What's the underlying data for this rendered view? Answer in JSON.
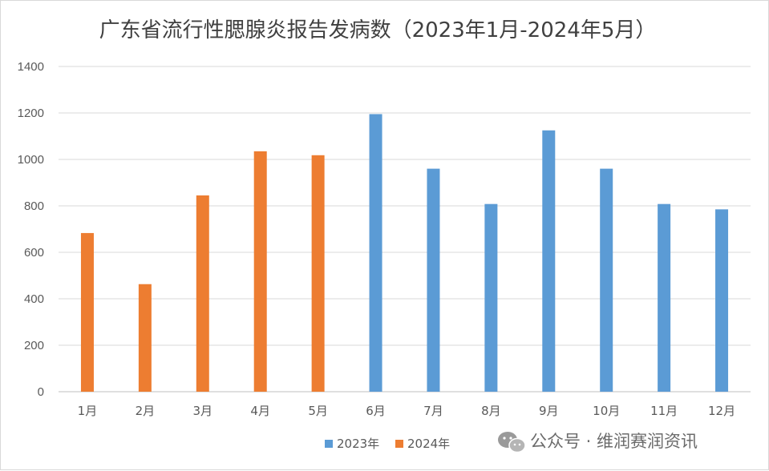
{
  "chart_data": {
    "type": "bar",
    "title": "广东省流行性腮腺炎报告发病数（2023年1月-2024年5月）",
    "xlabel": "",
    "ylabel": "",
    "ylim": [
      0,
      1400
    ],
    "yticks": [
      0,
      200,
      400,
      600,
      800,
      1000,
      1200,
      1400
    ],
    "grid": true,
    "categories": [
      "1月",
      "2月",
      "3月",
      "4月",
      "5月",
      "6月",
      "7月",
      "8月",
      "9月",
      "10月",
      "11月",
      "12月"
    ],
    "series": [
      {
        "name": "2023年",
        "color": "#5b9bd5",
        "values": [
          null,
          null,
          null,
          null,
          null,
          1195,
          960,
          808,
          1125,
          960,
          808,
          785
        ]
      },
      {
        "name": "2024年",
        "color": "#ed7d31",
        "values": [
          683,
          463,
          845,
          1035,
          1018,
          null,
          null,
          null,
          null,
          null,
          null,
          null
        ]
      }
    ],
    "legend_position": "bottom-center"
  },
  "watermark": {
    "text": "公众号 · 维润赛润资讯",
    "icon": "wechat-icon"
  }
}
